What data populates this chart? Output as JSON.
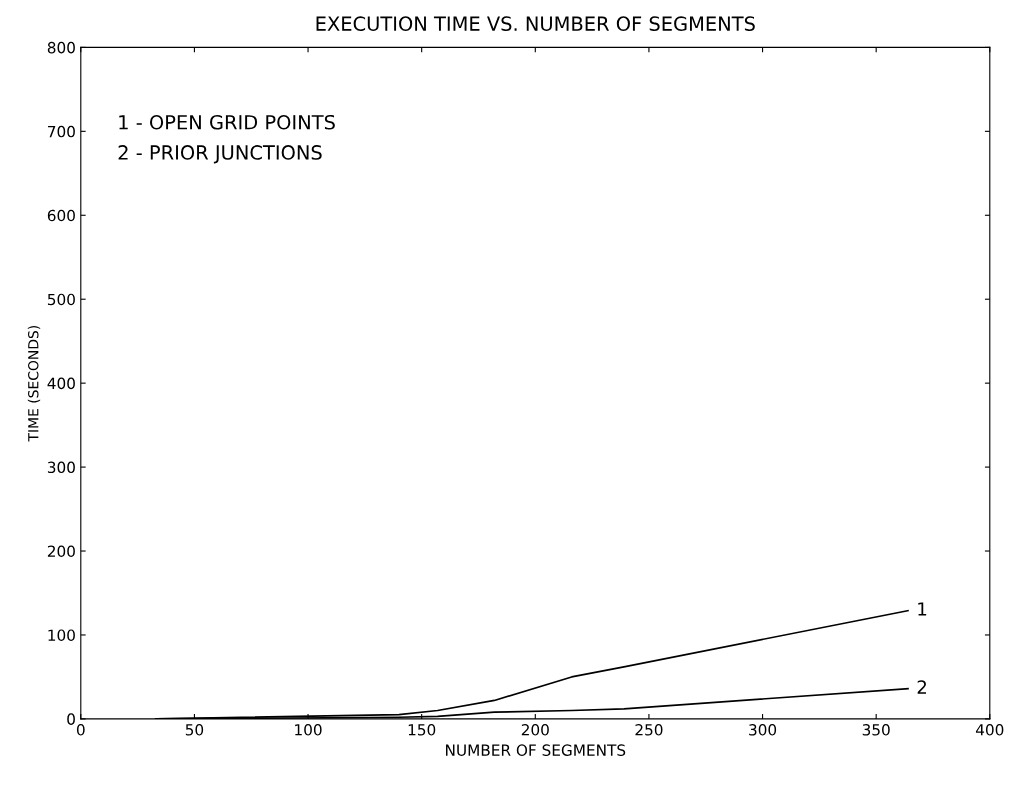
{
  "chart_data": {
    "type": "line",
    "title": "EXECUTION TIME VS. NUMBER OF SEGMENTS",
    "xlabel": "NUMBER OF SEGMENTS",
    "ylabel": "TIME (SECONDS)",
    "xlim": [
      0,
      400
    ],
    "xticks": [
      0,
      50,
      100,
      150,
      200,
      250,
      300,
      350,
      400
    ],
    "ylim": [
      0,
      800
    ],
    "yticks": [
      0,
      100,
      200,
      300,
      400,
      500,
      600,
      700,
      800
    ],
    "grid": false,
    "annotations": [
      "1 - OPEN GRID POINTS",
      "2 - PRIOR JUNCTIONS"
    ],
    "series": [
      {
        "name": "1",
        "color": "#000000",
        "x": [
          33,
          140,
          157,
          182,
          216,
          239,
          364
        ],
        "values": [
          0,
          5,
          10,
          22,
          50,
          62,
          129
        ]
      },
      {
        "name": "2",
        "color": "#000000",
        "x": [
          33,
          140,
          157,
          182,
          216,
          239,
          364
        ],
        "values": [
          0,
          2,
          3,
          8,
          10,
          12,
          36
        ]
      }
    ]
  }
}
